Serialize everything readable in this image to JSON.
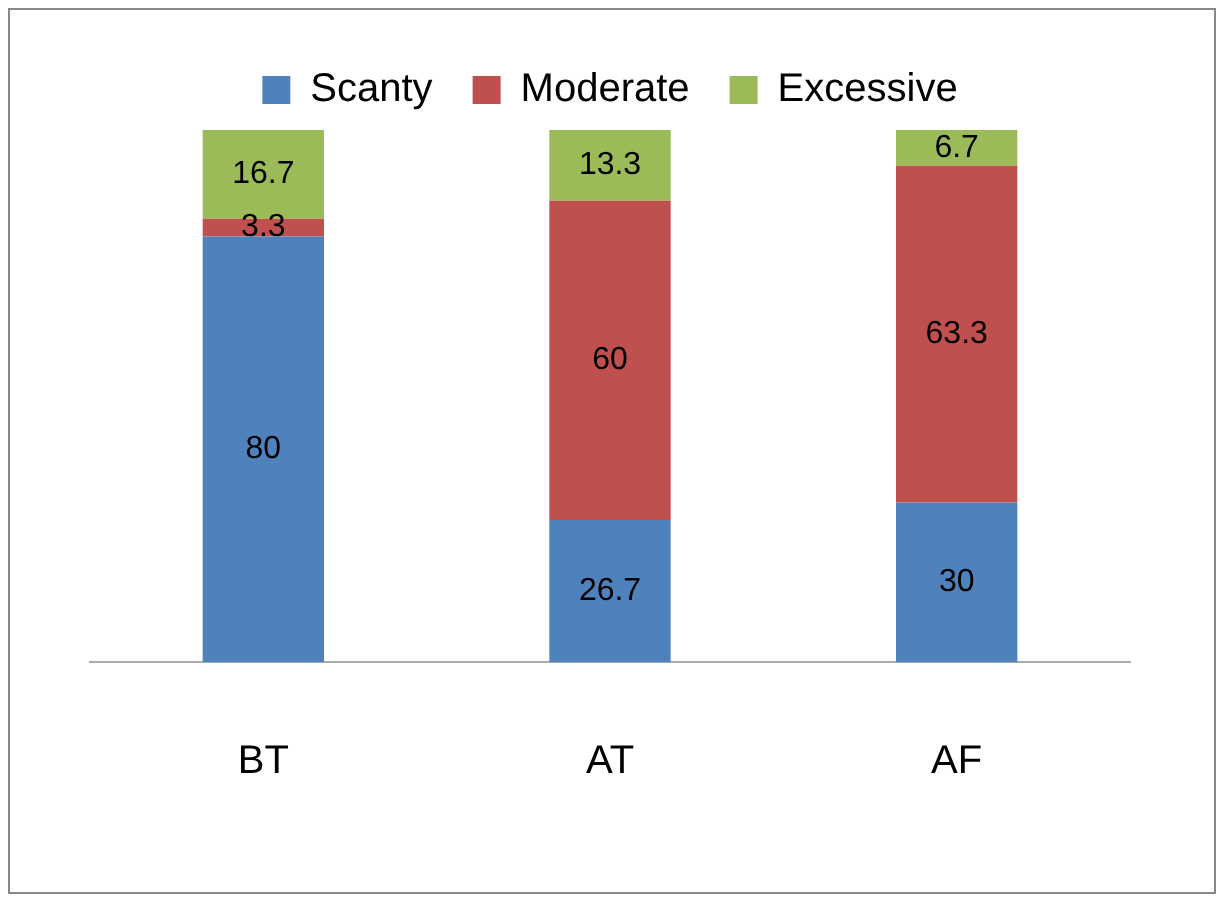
{
  "chart_data": {
    "type": "bar",
    "stacked": true,
    "categories": [
      "BT",
      "AT",
      "AF"
    ],
    "series": [
      {
        "name": "Scanty",
        "color": "#4f81bd",
        "values": [
          80,
          26.7,
          30
        ]
      },
      {
        "name": "Moderate",
        "color": "#c0504d",
        "values": [
          3.3,
          60,
          63.3
        ]
      },
      {
        "name": "Excessive",
        "color": "#9bbb59",
        "values": [
          16.7,
          13.3,
          6.7
        ]
      }
    ],
    "data_labels": true,
    "legend": "top",
    "grid": false,
    "tick_labels": "x"
  }
}
